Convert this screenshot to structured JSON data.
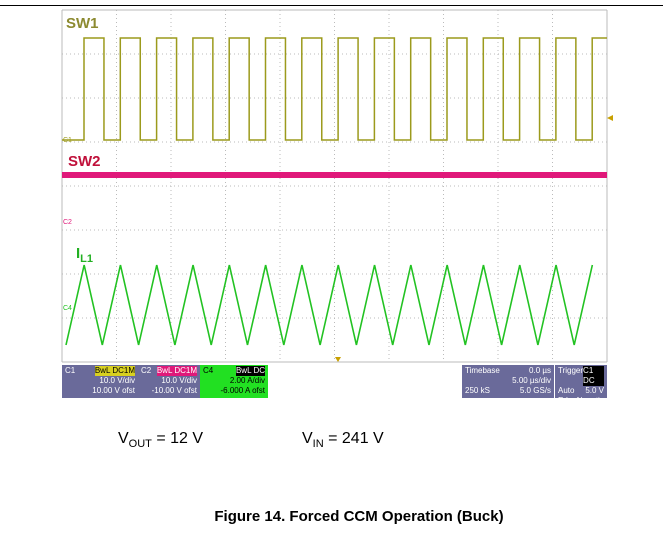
{
  "scope": {
    "traces": {
      "sw1": "SW1",
      "sw2": "SW2",
      "il1": {
        "main": "I",
        "sub": "L1"
      }
    },
    "markers": [
      "C1",
      "C2",
      "C4"
    ],
    "channels": [
      {
        "name": "C1",
        "coupling": "BwL DC1M",
        "scale": "10.0 V/div",
        "offset": "10.00 V ofst"
      },
      {
        "name": "C2",
        "coupling": "BwL DC1M",
        "scale": "10.0 V/div",
        "offset": "-10.00 V ofst"
      },
      {
        "name": "C4",
        "coupling": "BwL DC",
        "scale": "2.00 A/div",
        "offset": "-6.000 A ofst"
      }
    ],
    "timebase": {
      "title": "Timebase",
      "delay": "0.0 µs",
      "scale": "5.00 µs/div",
      "samples": "250 kS",
      "rate": "5.0 GS/s"
    },
    "trigger": {
      "title": "Trigger",
      "source": "C1 DC",
      "mode": "Auto",
      "level": "5.0 V",
      "type": "Edge",
      "slope": "Negative"
    }
  },
  "conditions": {
    "vout": {
      "main": "V",
      "sub": "OUT",
      "rest": " = 12 V"
    },
    "vin": {
      "main": "V",
      "sub": "IN",
      "rest": " = 241 V"
    }
  },
  "caption": "Figure 14. Forced CCM Operation (Buck)"
}
